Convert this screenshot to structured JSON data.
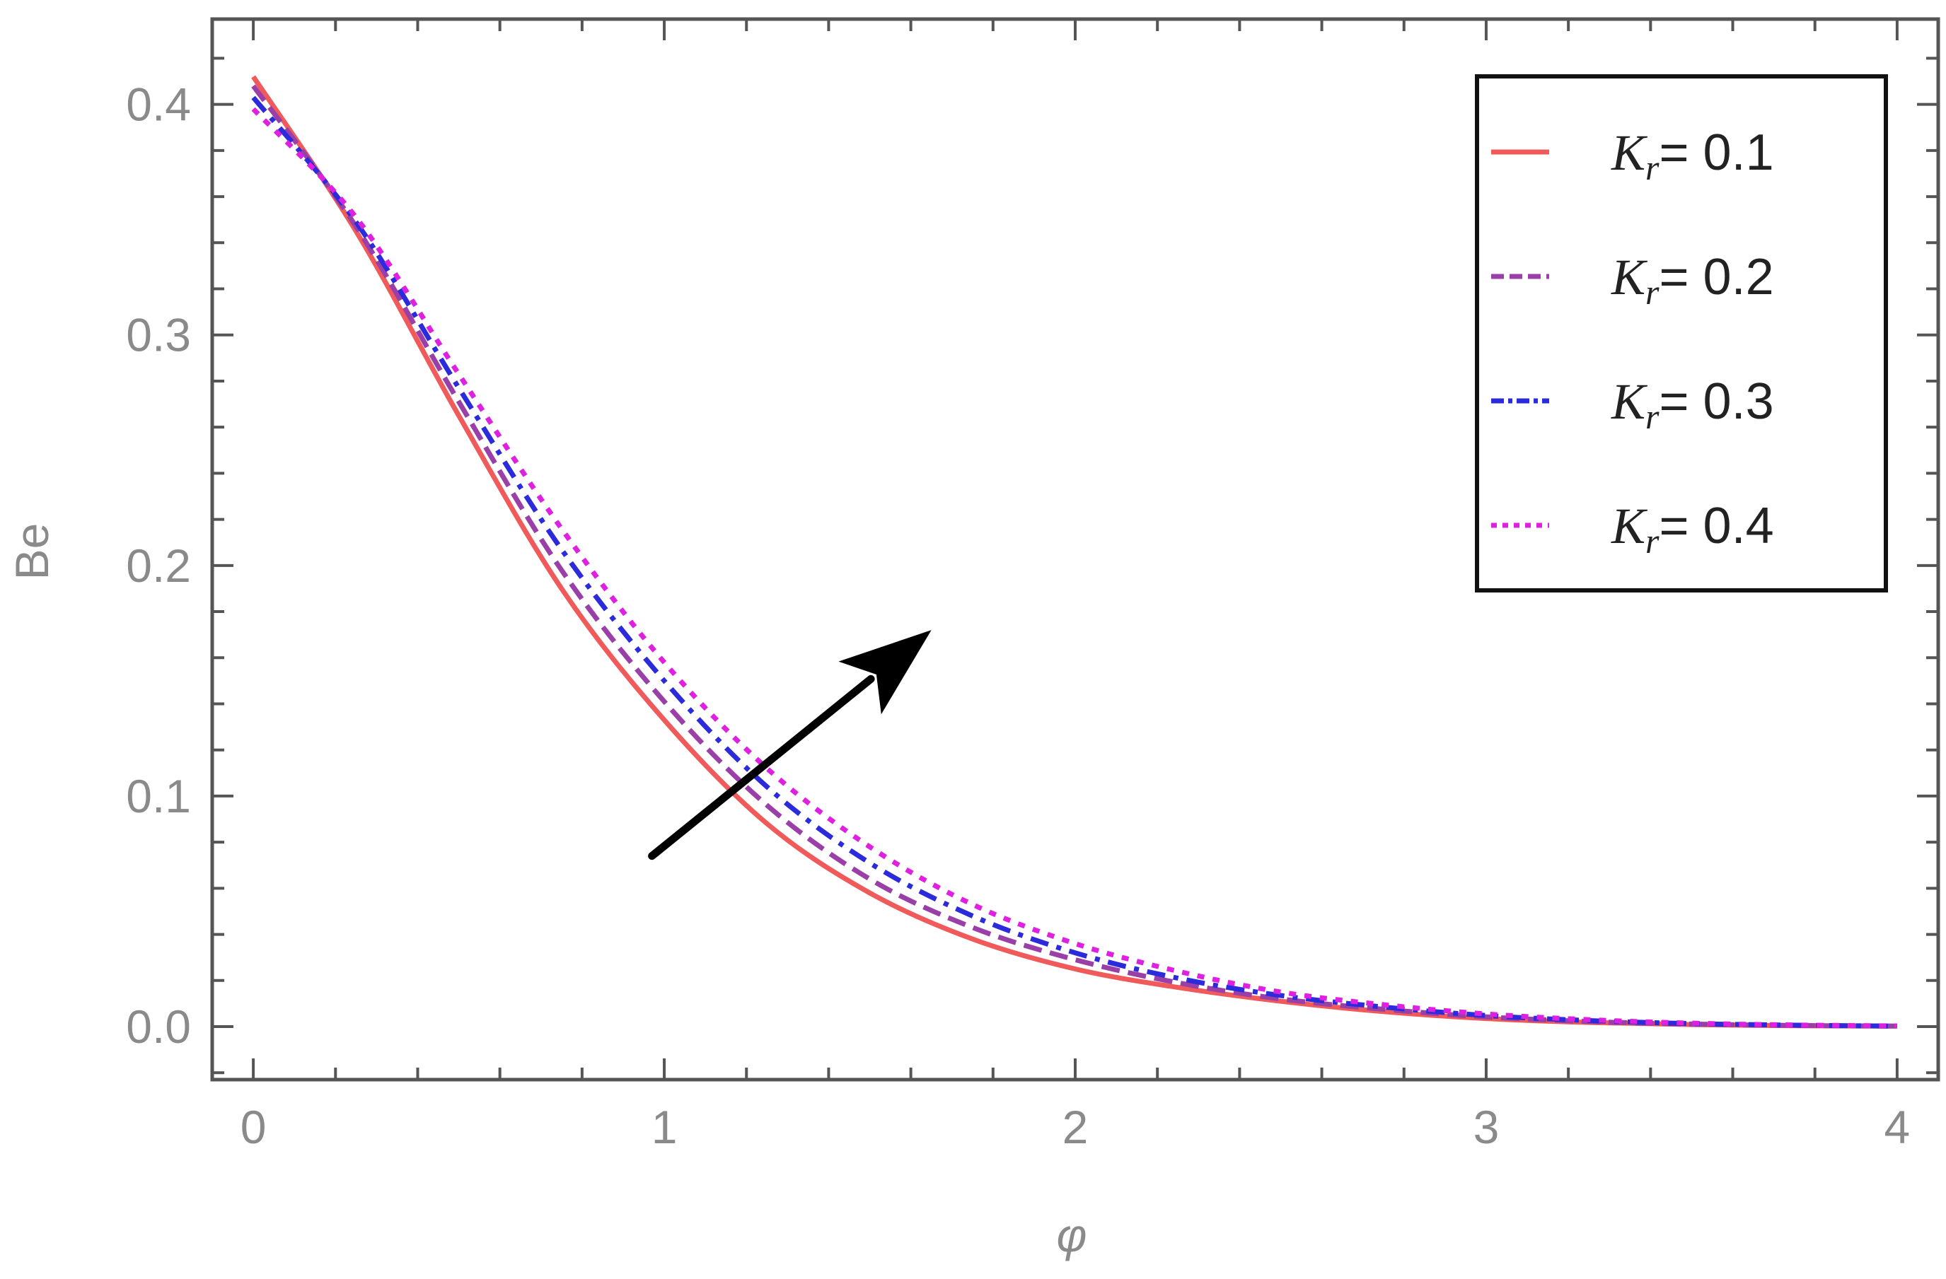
{
  "chart_data": {
    "type": "line",
    "title": "",
    "xlabel": "φ",
    "ylabel": "Be",
    "xlim": [
      -0.1,
      4.1
    ],
    "ylim": [
      -0.023,
      0.437
    ],
    "x_ticks": [
      0,
      1,
      2,
      3,
      4
    ],
    "x_tick_labels": [
      "0",
      "1",
      "2",
      "3",
      "4"
    ],
    "y_ticks": [
      0.0,
      0.1,
      0.2,
      0.3,
      0.4
    ],
    "y_tick_labels": [
      "0.0",
      "0.1",
      "0.2",
      "0.3",
      "0.4"
    ],
    "grid": false,
    "legend_position": "top-right",
    "x": [
      0,
      0.25,
      0.5,
      0.75,
      1.0,
      1.25,
      1.5,
      1.75,
      2.0,
      2.25,
      2.5,
      2.75,
      3.0,
      3.25,
      3.5,
      3.75,
      4.0
    ],
    "series": [
      {
        "name": "Kr = 0.1",
        "legend_symbol": "K",
        "legend_subscript": "r",
        "legend_value": "= 0.1",
        "color": "#f05a5a",
        "dash": "solid",
        "values": [
          0.412,
          0.345,
          0.265,
          0.19,
          0.133,
          0.088,
          0.058,
          0.038,
          0.025,
          0.017,
          0.011,
          0.0065,
          0.0035,
          0.0018,
          0.0009,
          0.0004,
          0.0002
        ]
      },
      {
        "name": "Kr = 0.2",
        "legend_symbol": "K",
        "legend_subscript": "r",
        "legend_value": "= 0.2",
        "color": "#9b3fa8",
        "dash": "dashed",
        "values": [
          0.408,
          0.347,
          0.271,
          0.198,
          0.141,
          0.096,
          0.064,
          0.043,
          0.029,
          0.019,
          0.012,
          0.0075,
          0.0042,
          0.0022,
          0.0011,
          0.0005,
          0.0002
        ]
      },
      {
        "name": "Kr = 0.3",
        "legend_symbol": "K",
        "legend_subscript": "r",
        "legend_value": "= 0.3",
        "color": "#2b2bdc",
        "dash": "dotdash",
        "values": [
          0.403,
          0.349,
          0.277,
          0.207,
          0.15,
          0.104,
          0.071,
          0.048,
          0.032,
          0.021,
          0.0135,
          0.0085,
          0.0048,
          0.0026,
          0.0013,
          0.0006,
          0.0002
        ]
      },
      {
        "name": "Kr = 0.4",
        "legend_symbol": "K",
        "legend_subscript": "r",
        "legend_value": "= 0.4",
        "color": "#e020e0",
        "dash": "dotted",
        "values": [
          0.398,
          0.351,
          0.283,
          0.216,
          0.158,
          0.112,
          0.078,
          0.053,
          0.036,
          0.024,
          0.015,
          0.0095,
          0.0055,
          0.003,
          0.0015,
          0.0007,
          0.0003
        ]
      }
    ],
    "annotations": [
      {
        "type": "arrow",
        "from": [
          0.97,
          0.074
        ],
        "to": [
          1.65,
          0.172
        ],
        "color": "#000000"
      }
    ]
  }
}
